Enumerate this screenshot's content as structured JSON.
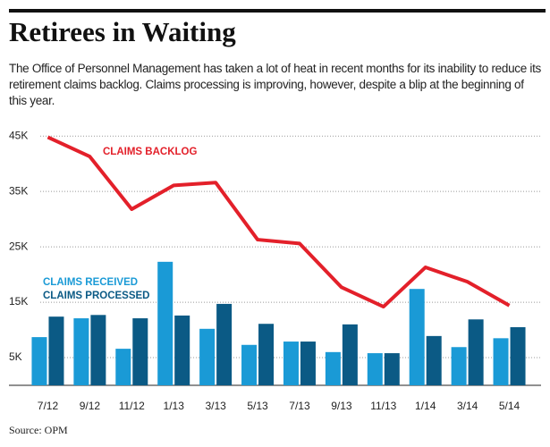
{
  "chart_data": {
    "type": "bar-line",
    "title": "Retirees in Waiting",
    "subtitle": "The Office of Personnel Management has taken a lot of heat in recent months for its inability to reduce its retirement claims backlog. Claims processing is improving, however, despite a blip at the beginning of this year.",
    "source": "Source: OPM",
    "categories": [
      "7/12",
      "9/12",
      "11/12",
      "1/13",
      "3/13",
      "5/13",
      "7/13",
      "9/13",
      "11/13",
      "1/14",
      "3/14",
      "5/14"
    ],
    "series": [
      {
        "name": "CLAIMS RECEIVED",
        "color": "#1a9ad6",
        "kind": "bar",
        "values": [
          8700,
          12100,
          6600,
          22300,
          10200,
          7300,
          7900,
          6000,
          5800,
          17400,
          6900,
          8500
        ]
      },
      {
        "name": "CLAIMS PROCESSED",
        "color": "#0b5a85",
        "kind": "bar",
        "values": [
          12400,
          12700,
          12100,
          12600,
          14700,
          11100,
          7900,
          11000,
          5800,
          8900,
          11900,
          10500
        ]
      },
      {
        "name": "CLAIMS BACKLOG",
        "color": "#e3202a",
        "kind": "line",
        "values": [
          44800,
          41300,
          31800,
          36100,
          36600,
          26300,
          25600,
          17700,
          14200,
          21300,
          18700,
          14400
        ]
      }
    ],
    "ylim": [
      0,
      46000
    ],
    "yticks": [
      {
        "value": 5000,
        "label": "5K"
      },
      {
        "value": 15000,
        "label": "15K"
      },
      {
        "value": 25000,
        "label": "25K"
      },
      {
        "value": 35000,
        "label": "35K"
      },
      {
        "value": 45000,
        "label": "45K"
      }
    ],
    "grid": true
  }
}
